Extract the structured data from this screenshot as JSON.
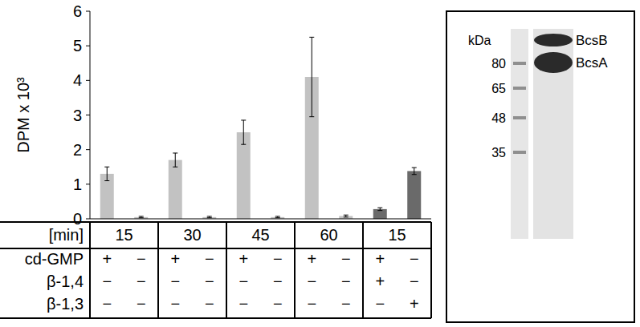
{
  "chart_data": {
    "type": "bar",
    "y_label": "DPM x 10³",
    "categories": [
      null,
      null,
      null,
      null,
      null,
      null,
      null,
      null,
      null,
      null
    ],
    "values": [
      1.3,
      0.05,
      1.7,
      0.05,
      2.5,
      0.05,
      4.1,
      0.08,
      0.28,
      1.38
    ],
    "errors": [
      0.2,
      0.02,
      0.2,
      0.02,
      0.35,
      0.02,
      1.15,
      0.03,
      0.04,
      0.1
    ],
    "colors": [
      "#c2c2c2",
      "#c2c2c2",
      "#c2c2c2",
      "#c2c2c2",
      "#c2c2c2",
      "#c2c2c2",
      "#c2c2c2",
      "#c2c2c2",
      "#6a6a6a",
      "#6a6a6a"
    ],
    "ylim": [
      0,
      6
    ],
    "yticks": [
      0,
      1,
      2,
      3,
      4,
      5,
      6
    ],
    "grid": false,
    "x_table": {
      "row_labels": [
        "[min]",
        "cd-GMP",
        "β-1,4",
        "β-1,3"
      ],
      "groups": [
        15,
        30,
        45,
        60,
        15
      ],
      "rows": [
        [
          "+",
          "−",
          "+",
          "−",
          "+",
          "−",
          "+",
          "−",
          "+",
          "−"
        ],
        [
          "−",
          "−",
          "−",
          "−",
          "−",
          "−",
          "−",
          "−",
          "+",
          "−"
        ],
        [
          "−",
          "−",
          "−",
          "−",
          "−",
          "−",
          "−",
          "−",
          "−",
          "+"
        ]
      ]
    }
  },
  "gel": {
    "unit": "kDa",
    "markers": [
      80,
      65,
      48,
      35
    ],
    "bands": [
      "BcsB",
      "BcsA"
    ]
  }
}
